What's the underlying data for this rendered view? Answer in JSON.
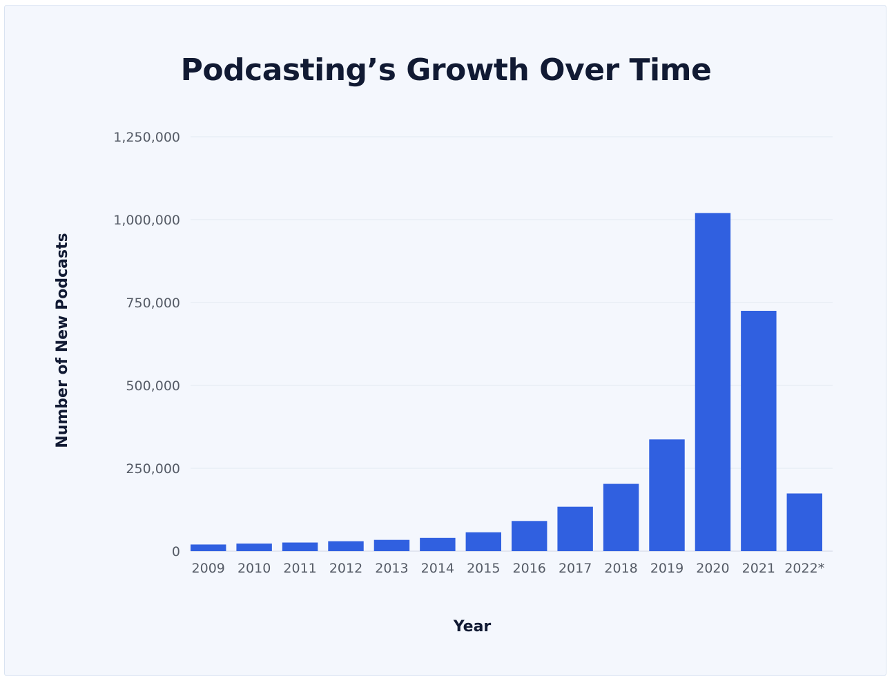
{
  "chart_data": {
    "type": "bar",
    "title": "Podcasting’s Growth Over Time",
    "xlabel": "Year",
    "ylabel": "Number of New Podcasts",
    "categories": [
      "2009",
      "2010",
      "2011",
      "2012",
      "2013",
      "2014",
      "2015",
      "2016",
      "2017",
      "2018",
      "2019",
      "2020",
      "2021",
      "2022*"
    ],
    "values": [
      20000,
      23000,
      26000,
      30000,
      34000,
      40000,
      57000,
      91000,
      134000,
      203000,
      337000,
      1020000,
      725000,
      174000
    ],
    "ylim": [
      0,
      1250000
    ],
    "yticks": [
      0,
      250000,
      500000,
      750000,
      1000000,
      1250000
    ],
    "ytick_labels": [
      "0",
      "250,000",
      "500,000",
      "750,000",
      "1,000,000",
      "1,250,000"
    ],
    "grid": true,
    "bar_color": "#3060e0"
  }
}
